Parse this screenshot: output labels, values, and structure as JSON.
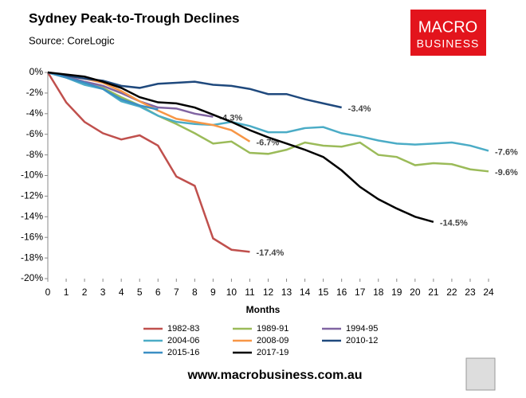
{
  "chart_data": {
    "type": "line",
    "title": "Sydney Peak-to-Trough Declines",
    "subtitle": "Source: CoreLogic",
    "logo": [
      "MACRO",
      "BUSINESS"
    ],
    "footer": "www.macrobusiness.com.au",
    "x_label": "Months",
    "x": [
      0,
      1,
      2,
      3,
      4,
      5,
      6,
      7,
      8,
      9,
      10,
      11,
      12,
      13,
      14,
      15,
      16,
      17,
      18,
      19,
      20,
      21,
      22,
      23,
      24
    ],
    "xlim": [
      0,
      24
    ],
    "xticks": [
      0,
      1,
      2,
      3,
      4,
      5,
      6,
      7,
      8,
      9,
      10,
      11,
      12,
      13,
      14,
      15,
      16,
      17,
      18,
      19,
      20,
      21,
      22,
      23,
      24
    ],
    "ylim": [
      -20,
      0
    ],
    "yticks": [
      {
        "value": -20,
        "label": "-20%"
      },
      {
        "value": -18,
        "label": "-18%"
      },
      {
        "value": -16,
        "label": "-16%"
      },
      {
        "value": -14,
        "label": "-14%"
      },
      {
        "value": -12,
        "label": "-12%"
      },
      {
        "value": -10,
        "label": "-10%"
      },
      {
        "value": -8,
        "label": "-8%"
      },
      {
        "value": -6,
        "label": "-6%"
      },
      {
        "value": -4,
        "label": "-4%"
      },
      {
        "value": -2,
        "label": "-2%"
      },
      {
        "value": 0,
        "label": "0%"
      }
    ],
    "series": [
      {
        "name": "1982-83",
        "color": "#c0504d",
        "values": [
          0,
          -2.9,
          -4.8,
          -5.9,
          -6.5,
          -6.1,
          -7.1,
          -10.1,
          -11.0,
          -16.1,
          -17.2,
          -17.4,
          null,
          null,
          null,
          null,
          null,
          null,
          null,
          null,
          null,
          null,
          null,
          null,
          null
        ],
        "value_labels": [
          null,
          null,
          null,
          null,
          null,
          null,
          null,
          null,
          null,
          null,
          null,
          "-17.4%",
          null,
          null,
          null,
          null,
          null,
          null,
          null,
          null,
          null,
          null,
          null,
          null,
          null
        ]
      },
      {
        "name": "1989-91",
        "color": "#9bbb59",
        "values": [
          0,
          -0.5,
          -1.1,
          -1.5,
          -2.4,
          -3.2,
          -4.2,
          -5.0,
          -5.9,
          -6.9,
          -6.7,
          -7.8,
          -7.9,
          -7.5,
          -6.8,
          -7.1,
          -7.2,
          -6.8,
          -8.0,
          -8.2,
          -9.0,
          -8.8,
          -8.9,
          -9.4,
          -9.6
        ],
        "value_labels": [
          null,
          null,
          null,
          null,
          null,
          null,
          null,
          null,
          null,
          null,
          null,
          null,
          null,
          null,
          null,
          null,
          null,
          null,
          null,
          null,
          null,
          null,
          null,
          null,
          "-9.6%"
        ]
      },
      {
        "name": "1994-95",
        "color": "#8064a2",
        "values": [
          0,
          -0.4,
          -0.9,
          -1.3,
          -2.0,
          -2.8,
          -3.4,
          -3.5,
          -4.0,
          -4.3,
          null,
          null,
          null,
          null,
          null,
          null,
          null,
          null,
          null,
          null,
          null,
          null,
          null,
          null,
          null
        ],
        "value_labels": [
          null,
          null,
          null,
          null,
          null,
          null,
          null,
          null,
          null,
          "-4.3%",
          null,
          null,
          null,
          null,
          null,
          null,
          null,
          null,
          null,
          null,
          null,
          null,
          null,
          null,
          null
        ]
      },
      {
        "name": "2004-06",
        "color": "#4bacc6",
        "values": [
          0,
          -0.5,
          -1.2,
          -1.6,
          -2.8,
          -3.3,
          -4.2,
          -4.8,
          -5.0,
          -5.1,
          -4.8,
          -5.2,
          -5.8,
          -5.8,
          -5.4,
          -5.3,
          -5.9,
          -6.2,
          -6.6,
          -6.9,
          -7.0,
          -6.9,
          -6.8,
          -7.1,
          -7.6
        ],
        "value_labels": [
          null,
          null,
          null,
          null,
          null,
          null,
          null,
          null,
          null,
          null,
          null,
          null,
          null,
          null,
          null,
          null,
          null,
          null,
          null,
          null,
          null,
          null,
          null,
          null,
          "-7.6%"
        ]
      },
      {
        "name": "2008-09",
        "color": "#f79646",
        "values": [
          0,
          -0.3,
          -0.6,
          -1.0,
          -1.8,
          -2.8,
          -3.7,
          -4.5,
          -4.8,
          -5.1,
          -5.6,
          -6.7,
          null,
          null,
          null,
          null,
          null,
          null,
          null,
          null,
          null,
          null,
          null,
          null,
          null
        ],
        "value_labels": [
          null,
          null,
          null,
          null,
          null,
          null,
          null,
          null,
          null,
          null,
          null,
          "-6.7%",
          null,
          null,
          null,
          null,
          null,
          null,
          null,
          null,
          null,
          null,
          null,
          null,
          null
        ]
      },
      {
        "name": "2010-12",
        "color": "#1f497d",
        "values": [
          0,
          -0.3,
          -0.6,
          -0.8,
          -1.3,
          -1.5,
          -1.1,
          -1.0,
          -0.9,
          -1.2,
          -1.3,
          -1.6,
          -2.1,
          -2.1,
          -2.6,
          -3.0,
          -3.4,
          null,
          null,
          null,
          null,
          null,
          null,
          null,
          null
        ],
        "value_labels": [
          null,
          null,
          null,
          null,
          null,
          null,
          null,
          null,
          null,
          null,
          null,
          null,
          null,
          null,
          null,
          null,
          "-3.4%",
          null,
          null,
          null,
          null,
          null,
          null,
          null,
          null
        ]
      },
      {
        "name": "2015-16",
        "color": "#3b8fc4",
        "values": [
          0,
          -0.5,
          -1.0,
          -1.6,
          -2.6,
          -3.2,
          -3.6,
          null,
          null,
          null,
          null,
          null,
          null,
          null,
          null,
          null,
          null,
          null,
          null,
          null,
          null,
          null,
          null,
          null,
          null
        ]
      },
      {
        "name": "2017-19",
        "color": "#000000",
        "values": [
          0,
          -0.2,
          -0.4,
          -0.9,
          -1.5,
          -2.4,
          -2.9,
          -3.0,
          -3.4,
          -4.1,
          -4.8,
          -5.6,
          -6.3,
          -6.9,
          -7.5,
          -8.2,
          -9.5,
          -11.1,
          -12.3,
          -13.2,
          -14.0,
          -14.5,
          null,
          null,
          null
        ],
        "value_labels": [
          null,
          null,
          null,
          null,
          null,
          null,
          null,
          null,
          null,
          null,
          null,
          null,
          null,
          null,
          null,
          null,
          null,
          null,
          null,
          null,
          null,
          "-14.5%",
          null,
          null,
          null
        ]
      }
    ]
  }
}
